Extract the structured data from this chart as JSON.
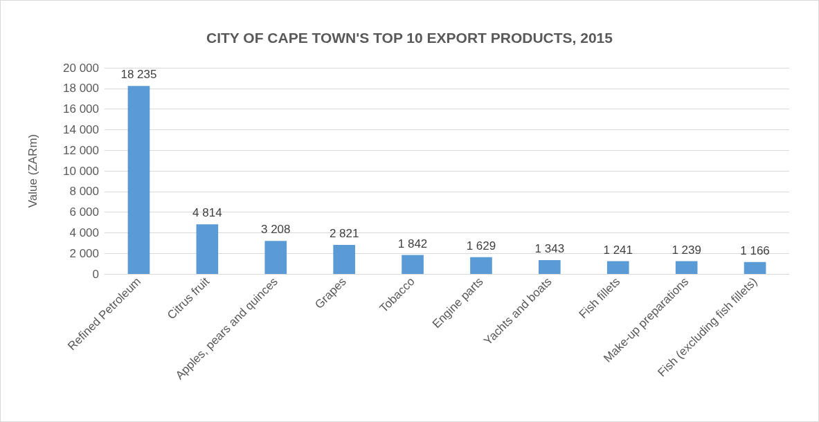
{
  "chart_data": {
    "type": "bar",
    "title": "CITY OF CAPE TOWN'S TOP 10 EXPORT PRODUCTS, 2015",
    "ylabel": "Value (ZARm)",
    "categories": [
      "Refined Petroleum",
      "Citrus fruit",
      "Apples, pears and quinces",
      "Grapes",
      "Tobacco",
      "Engine parts",
      "Yachts and boats",
      "Fish fillets",
      "Make-up preparations",
      "Fish (excluding fish fillets)"
    ],
    "values": [
      18235,
      4814,
      3208,
      2821,
      1842,
      1629,
      1343,
      1241,
      1239,
      1166
    ],
    "value_labels": [
      "18 235",
      "4 814",
      "3 208",
      "2 821",
      "1 842",
      "1 629",
      "1 343",
      "1 241",
      "1 239",
      "1 166"
    ],
    "color": "#5b9bd5",
    "ylim": [
      0,
      20000
    ],
    "yticks": [
      0,
      {
        "value": 2000,
        "label": "2 000"
      },
      {
        "value": 4000,
        "label": "4 000"
      },
      {
        "value": 6000,
        "label": "6 000"
      },
      {
        "value": 8000,
        "label": "8 000"
      },
      {
        "value": 10000,
        "label": "10 000"
      },
      {
        "value": 12000,
        "label": "12 000"
      },
      {
        "value": 14000,
        "label": "14 000"
      },
      {
        "value": 16000,
        "label": "16 000"
      },
      {
        "value": 18000,
        "label": "18 000"
      },
      {
        "value": 20000,
        "label": "20 000"
      }
    ],
    "grid": "y"
  }
}
